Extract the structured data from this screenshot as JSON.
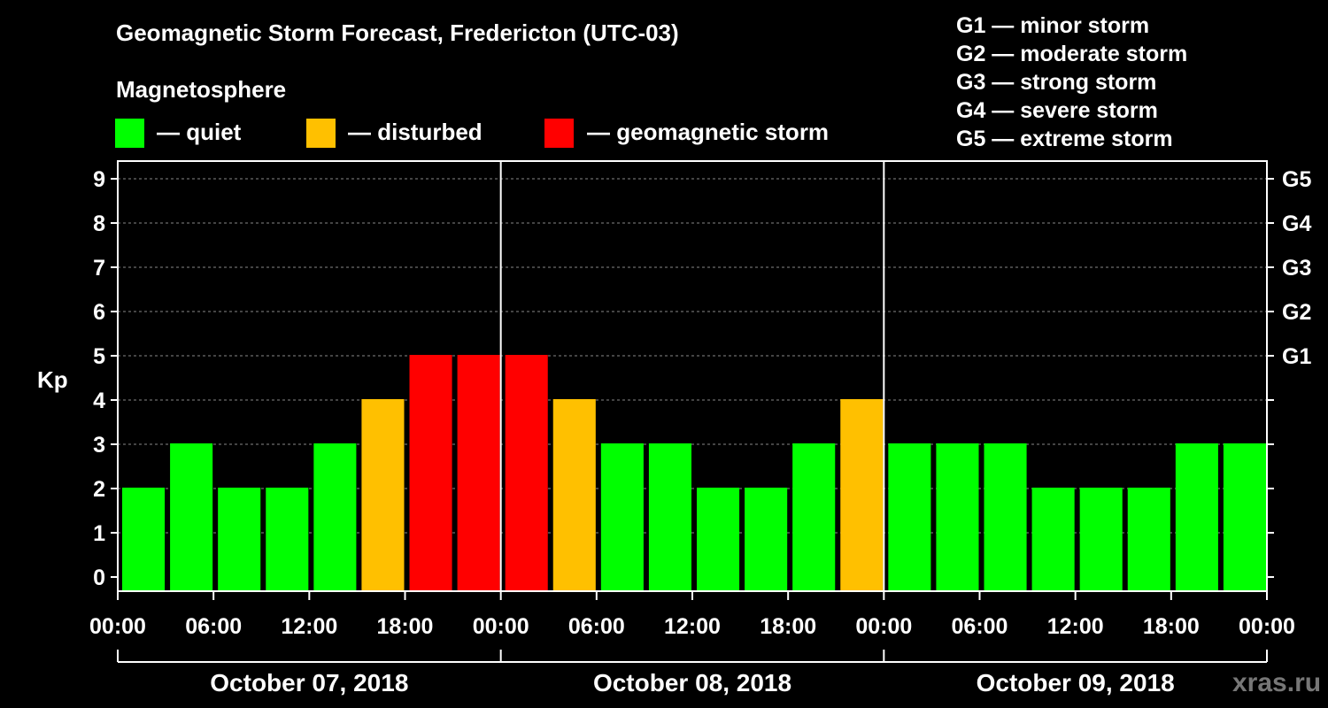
{
  "header": {
    "title": "Geomagnetic Storm Forecast, Fredericton (UTC-03)",
    "subtitle": "Magnetosphere"
  },
  "legend": [
    {
      "label": "— quiet",
      "color": "#00ff00"
    },
    {
      "label": "— disturbed",
      "color": "#ffc000"
    },
    {
      "label": "— geomagnetic storm",
      "color": "#ff0000"
    }
  ],
  "storm_scale": [
    "G1 — minor storm",
    "G2 — moderate storm",
    "G3 — strong storm",
    "G4 — severe storm",
    "G5 — extreme storm"
  ],
  "watermark": "xras.ru",
  "chart_data": {
    "type": "bar",
    "ylabel": "Kp",
    "ylim": [
      0,
      9
    ],
    "yticks": [
      0,
      1,
      2,
      3,
      4,
      5,
      6,
      7,
      8,
      9
    ],
    "right_axis_labels": [
      {
        "kp": 5,
        "label": "G1"
      },
      {
        "kp": 6,
        "label": "G2"
      },
      {
        "kp": 7,
        "label": "G3"
      },
      {
        "kp": 8,
        "label": "G4"
      },
      {
        "kp": 9,
        "label": "G5"
      }
    ],
    "x_tick_labels": [
      "00:00",
      "06:00",
      "12:00",
      "18:00",
      "00:00",
      "06:00",
      "12:00",
      "18:00",
      "00:00",
      "06:00",
      "12:00",
      "18:00",
      "00:00"
    ],
    "days": [
      "October 07, 2018",
      "October 08, 2018",
      "October 09, 2018"
    ],
    "bar_interval_hours": 3,
    "grid": "horizontal dashed",
    "values": [
      2,
      3,
      2,
      2,
      3,
      4,
      5,
      5,
      5,
      4,
      3,
      3,
      2,
      2,
      3,
      4,
      3,
      3,
      3,
      2,
      2,
      2,
      3,
      3
    ],
    "levels": [
      "quiet",
      "quiet",
      "quiet",
      "quiet",
      "quiet",
      "disturbed",
      "storm",
      "storm",
      "storm",
      "disturbed",
      "quiet",
      "quiet",
      "quiet",
      "quiet",
      "quiet",
      "disturbed",
      "quiet",
      "quiet",
      "quiet",
      "quiet",
      "quiet",
      "quiet",
      "quiet",
      "quiet"
    ],
    "level_colors": {
      "quiet": "#00ff00",
      "disturbed": "#ffc000",
      "storm": "#ff0000"
    }
  }
}
